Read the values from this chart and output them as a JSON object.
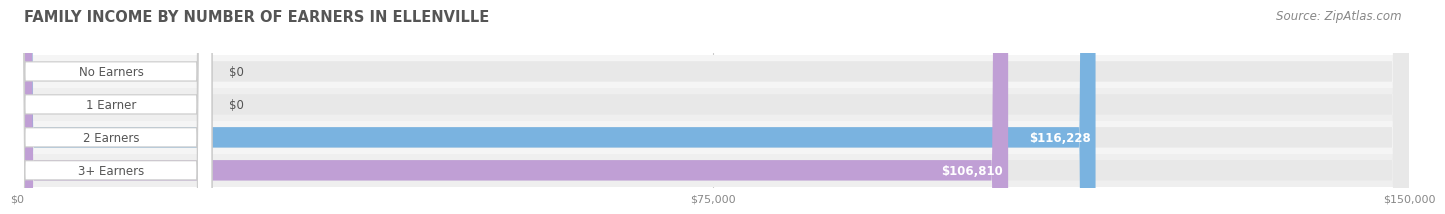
{
  "title": "FAMILY INCOME BY NUMBER OF EARNERS IN ELLENVILLE",
  "source": "Source: ZipAtlas.com",
  "categories": [
    "No Earners",
    "1 Earner",
    "2 Earners",
    "3+ Earners"
  ],
  "values": [
    0,
    0,
    116228,
    106810
  ],
  "bar_colors": [
    "#f5c89a",
    "#f0a0a0",
    "#7ab3e0",
    "#c09fd5"
  ],
  "bar_bg_color": "#e8e8e8",
  "row_bg_colors": [
    "#f2f2f2",
    "#f2f2f2",
    "#f2f2f2",
    "#f2f2f2"
  ],
  "xlim": [
    0,
    150000
  ],
  "xticks": [
    0,
    75000,
    150000
  ],
  "xtick_labels": [
    "$0",
    "$75,000",
    "$150,000"
  ],
  "value_labels": [
    "$0",
    "$0",
    "$116,228",
    "$106,810"
  ],
  "background_color": "#ffffff",
  "title_color": "#555555",
  "label_color": "#555555",
  "bar_height": 0.62,
  "bar_label_fontsize": 8.5,
  "category_fontsize": 8.5,
  "title_fontsize": 10.5,
  "source_fontsize": 8.5
}
